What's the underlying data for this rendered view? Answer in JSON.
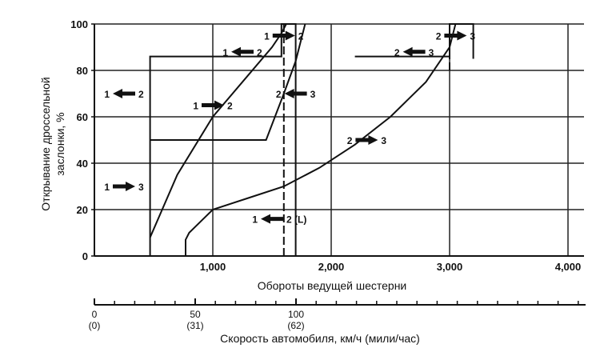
{
  "chart_data": {
    "type": "line",
    "title": "",
    "ylabel_line1": "Открывание дроссельной",
    "ylabel_line2": "заслонки, %",
    "xlabel": "Обороты ведущей шестерни",
    "x2label": "Скорость автомобиля, км/ч (мили/час)",
    "xlim": [
      0,
      4000
    ],
    "ylim": [
      0,
      100
    ],
    "grid": true,
    "y_ticks": [
      "0",
      "20",
      "40",
      "60",
      "80",
      "100"
    ],
    "x_ticks": [
      {
        "value": 1000,
        "label": "1,000"
      },
      {
        "value": 2000,
        "label": "2,000"
      },
      {
        "value": 3000,
        "label": "3,000"
      },
      {
        "value": 4000,
        "label": "4,000"
      }
    ],
    "x2_ticks": [
      {
        "kmh": 0,
        "label": "0",
        "sublabel": "(0)"
      },
      {
        "kmh": 50,
        "label": "50",
        "sublabel": "(31)"
      },
      {
        "kmh": 100,
        "label": "100",
        "sublabel": "(62)"
      }
    ],
    "series": [
      {
        "style": "solid",
        "points": [
          [
            470,
            0
          ],
          [
            470,
            86
          ],
          [
            1450,
            86
          ],
          [
            1580,
            86
          ],
          [
            1580,
            100
          ],
          [
            1700,
            100
          ],
          [
            1700,
            0
          ]
        ]
      },
      {
        "style": "solid",
        "points": [
          [
            470,
            8
          ],
          [
            700,
            35
          ],
          [
            1000,
            60
          ],
          [
            1300,
            78
          ],
          [
            1500,
            90
          ],
          [
            1580,
            96
          ],
          [
            1620,
            100
          ]
        ]
      },
      {
        "style": "solid",
        "points": [
          [
            470,
            50
          ],
          [
            1450,
            50
          ],
          [
            1600,
            70
          ],
          [
            1700,
            84
          ],
          [
            1780,
            100
          ]
        ]
      },
      {
        "style": "solid",
        "points": [
          [
            770,
            0
          ],
          [
            770,
            7
          ],
          [
            800,
            10
          ],
          [
            1000,
            20
          ],
          [
            1300,
            25
          ],
          [
            1600,
            30
          ],
          [
            1900,
            38
          ],
          [
            2200,
            48
          ],
          [
            2500,
            60
          ],
          [
            2800,
            75
          ],
          [
            3000,
            90
          ],
          [
            3050,
            100
          ]
        ]
      },
      {
        "style": "solid",
        "points": [
          [
            2200,
            86
          ],
          [
            3000,
            86
          ],
          [
            3000,
            100
          ],
          [
            3200,
            100
          ],
          [
            3200,
            85
          ]
        ]
      },
      {
        "style": "dashed",
        "points": [
          [
            1600,
            0
          ],
          [
            1600,
            100
          ]
        ]
      },
      {
        "style": "dashed",
        "points": [
          [
            3000,
            80
          ],
          [
            3000,
            100
          ]
        ]
      }
    ],
    "annotations": [
      {
        "from": "1",
        "to": "2",
        "x": 1600,
        "y": 95,
        "direction": "right"
      },
      {
        "from": "1",
        "to": "2",
        "x": 1250,
        "y": 88,
        "direction": "left"
      },
      {
        "from": "1",
        "to": "2",
        "x": 250,
        "y": 70,
        "direction": "left"
      },
      {
        "from": "1",
        "to": "2",
        "x": 1000,
        "y": 65,
        "direction": "right"
      },
      {
        "from": "2",
        "to": "3",
        "x": 1700,
        "y": 70,
        "direction": "left"
      },
      {
        "from": "2",
        "to": "3",
        "x": 2300,
        "y": 50,
        "direction": "right"
      },
      {
        "from": "1",
        "to": "3",
        "x": 250,
        "y": 30,
        "direction": "right"
      },
      {
        "from": "1",
        "to": "2 (L)",
        "x": 1500,
        "y": 16,
        "direction": "left"
      },
      {
        "from": "2",
        "to": "3",
        "x": 3050,
        "y": 95,
        "direction": "right"
      },
      {
        "from": "2",
        "to": "3",
        "x": 2700,
        "y": 88,
        "direction": "left"
      }
    ]
  }
}
